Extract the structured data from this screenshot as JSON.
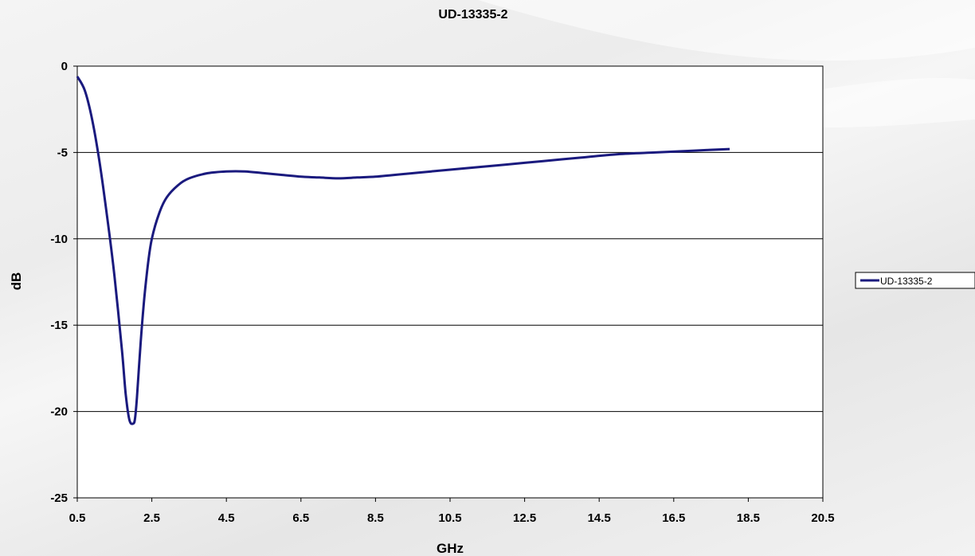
{
  "chart_data": {
    "type": "line",
    "title": "UD-13335-2",
    "xlabel": "GHz",
    "ylabel": "dB",
    "xlim": [
      0.5,
      20.5
    ],
    "ylim": [
      -25,
      0
    ],
    "x_ticks": [
      0.5,
      2.5,
      4.5,
      6.5,
      8.5,
      10.5,
      12.5,
      14.5,
      16.5,
      18.5,
      20.5
    ],
    "x_tick_labels": [
      "0.5",
      "2.5",
      "4.5",
      "6.5",
      "8.5",
      "10.5",
      "12.5",
      "14.5",
      "16.5",
      "18.5",
      "20.5"
    ],
    "y_ticks": [
      0,
      -5,
      -10,
      -15,
      -20,
      -25
    ],
    "y_tick_labels": [
      "0",
      "-5",
      "-10",
      "-15",
      "-20",
      "-25"
    ],
    "grid": "horizontal",
    "legend_position": "right",
    "series": [
      {
        "name": "UD-13335-2",
        "color": "#1a1a7e",
        "x": [
          0.5,
          0.7,
          0.9,
          1.1,
          1.3,
          1.5,
          1.7,
          1.8,
          1.9,
          2.0,
          2.05,
          2.1,
          2.2,
          2.3,
          2.4,
          2.5,
          2.7,
          2.9,
          3.2,
          3.5,
          4.0,
          4.5,
          5.0,
          5.5,
          6.0,
          6.5,
          7.0,
          7.5,
          8.0,
          8.5,
          9.0,
          10.0,
          11.0,
          12.0,
          13.0,
          14.0,
          15.0,
          16.0,
          17.0,
          18.0
        ],
        "y": [
          -0.6,
          -1.4,
          -3.1,
          -5.6,
          -8.7,
          -12.2,
          -16.5,
          -19.0,
          -20.5,
          -20.7,
          -20.4,
          -19.2,
          -16.0,
          -13.4,
          -11.4,
          -10.0,
          -8.5,
          -7.6,
          -6.9,
          -6.5,
          -6.2,
          -6.1,
          -6.1,
          -6.2,
          -6.3,
          -6.4,
          -6.45,
          -6.5,
          -6.45,
          -6.4,
          -6.3,
          -6.1,
          -5.9,
          -5.7,
          -5.5,
          -5.3,
          -5.1,
          -5.0,
          -4.9,
          -4.8
        ]
      }
    ]
  }
}
